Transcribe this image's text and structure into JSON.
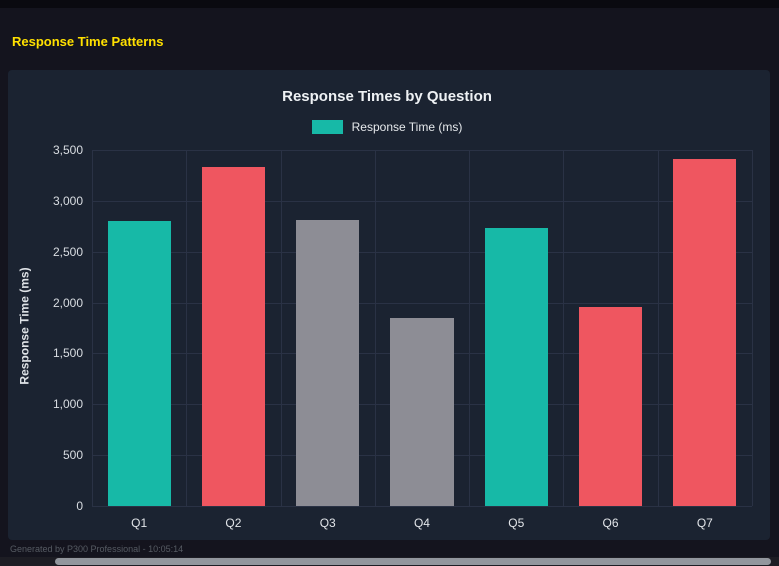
{
  "page": {
    "header_title": "Response Time Patterns",
    "footer_text": "Generated by P300 Professional - 10:05:14"
  },
  "legend": {
    "label": "Response Time (ms)",
    "swatch_color": "#17b9a7"
  },
  "colors": {
    "teal": "#17b9a7",
    "red": "#ef5660",
    "gray": "#8d8d95",
    "panel_bg": "#1b2331",
    "page_bg": "#14141e",
    "gridline": "#2a3245",
    "header_yellow": "#ffe000"
  },
  "chart_data": {
    "type": "bar",
    "title": "Response Times by Question",
    "categories": [
      "Q1",
      "Q2",
      "Q3",
      "Q4",
      "Q5",
      "Q6",
      "Q7"
    ],
    "values": [
      2800,
      3330,
      2810,
      1850,
      2730,
      1960,
      3410
    ],
    "bar_colors": [
      "#17b9a7",
      "#ef5660",
      "#8d8d95",
      "#8d8d95",
      "#17b9a7",
      "#ef5660",
      "#ef5660"
    ],
    "series_name": "Response Time (ms)",
    "xlabel": "",
    "ylabel": "Response Time (ms)",
    "ylim": [
      0,
      3500
    ],
    "ytick_values": [
      0,
      500,
      1000,
      1500,
      2000,
      2500,
      3000,
      3500
    ],
    "ytick_labels": [
      "0",
      "500",
      "1,000",
      "1,500",
      "2,000",
      "2,500",
      "3,000",
      "3,500"
    ],
    "grid": true,
    "legend_position": "top"
  }
}
